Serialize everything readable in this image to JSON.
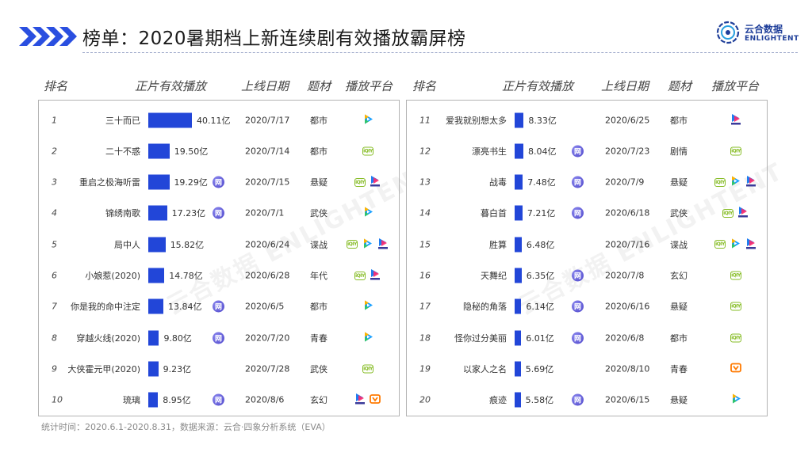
{
  "title": "榜单：2020暑期档上新连续剧有效播放霸屏榜",
  "logo": {
    "cn": "云合数据",
    "en": "ENLIGHTENT"
  },
  "headers": {
    "rank": "排名",
    "plays": "正片有效播放",
    "date": "上线日期",
    "genre": "题材",
    "platform": "播放平台"
  },
  "footnote": "统计时间：2020.6.1-2020.8.31，数据来源：云合·四象分析系统（EVA）",
  "watermark": {
    "cn": "云合数据",
    "en": "ENLIGHTENT"
  },
  "badge_char": "网",
  "bar_color": "#2246d8",
  "chart_data": {
    "type": "bar",
    "unit": "亿",
    "max_value": 40.11,
    "rows": [
      {
        "rank": "1",
        "name": "三十而已",
        "value": 40.11,
        "value_label": "40.11亿",
        "badge": false,
        "date": "2020/7/17",
        "genre": "都市",
        "platforms": [
          "tencent"
        ]
      },
      {
        "rank": "2",
        "name": "二十不惑",
        "value": 19.5,
        "value_label": "19.50亿",
        "badge": false,
        "date": "2020/7/14",
        "genre": "都市",
        "platforms": [
          "iqiyi"
        ]
      },
      {
        "rank": "3",
        "name": "重启之极海听雷",
        "value": 19.29,
        "value_label": "19.29亿",
        "badge": true,
        "date": "2020/7/15",
        "genre": "悬疑",
        "platforms": [
          "iqiyi",
          "youku"
        ]
      },
      {
        "rank": "4",
        "name": "锦绣南歌",
        "value": 17.23,
        "value_label": "17.23亿",
        "badge": true,
        "date": "2020/7/1",
        "genre": "武侠",
        "platforms": [
          "tencent"
        ]
      },
      {
        "rank": "5",
        "name": "局中人",
        "value": 15.82,
        "value_label": "15.82亿",
        "badge": false,
        "date": "2020/6/24",
        "genre": "谍战",
        "platforms": [
          "iqiyi",
          "tencent",
          "youku"
        ]
      },
      {
        "rank": "6",
        "name": "小娘惹(2020)",
        "value": 14.78,
        "value_label": "14.78亿",
        "badge": false,
        "date": "2020/6/28",
        "genre": "年代",
        "platforms": [
          "iqiyi",
          "youku"
        ]
      },
      {
        "rank": "7",
        "name": "你是我的命中注定",
        "value": 13.84,
        "value_label": "13.84亿",
        "badge": true,
        "date": "2020/6/5",
        "genre": "都市",
        "platforms": [
          "tencent"
        ]
      },
      {
        "rank": "8",
        "name": "穿越火线(2020)",
        "value": 9.8,
        "value_label": "9.80亿",
        "badge": true,
        "date": "2020/7/20",
        "genre": "青春",
        "platforms": [
          "tencent"
        ]
      },
      {
        "rank": "9",
        "name": "大侠霍元甲(2020)",
        "value": 9.23,
        "value_label": "9.23亿",
        "badge": false,
        "date": "2020/7/28",
        "genre": "武侠",
        "platforms": [
          "iqiyi"
        ]
      },
      {
        "rank": "10",
        "name": "琉璃",
        "value": 8.95,
        "value_label": "8.95亿",
        "badge": true,
        "date": "2020/8/6",
        "genre": "玄幻",
        "platforms": [
          "youku",
          "mango"
        ]
      },
      {
        "rank": "11",
        "name": "爱我就别想太多",
        "value": 8.33,
        "value_label": "8.33亿",
        "badge": false,
        "date": "2020/6/25",
        "genre": "都市",
        "platforms": [
          "youku"
        ]
      },
      {
        "rank": "12",
        "name": "漂亮书生",
        "value": 8.04,
        "value_label": "8.04亿",
        "badge": true,
        "date": "2020/7/23",
        "genre": "剧情",
        "platforms": [
          "iqiyi"
        ]
      },
      {
        "rank": "13",
        "name": "战毒",
        "value": 7.48,
        "value_label": "7.48亿",
        "badge": true,
        "date": "2020/7/9",
        "genre": "悬疑",
        "platforms": [
          "iqiyi",
          "tencent",
          "youku"
        ]
      },
      {
        "rank": "14",
        "name": "暮白首",
        "value": 7.21,
        "value_label": "7.21亿",
        "badge": true,
        "date": "2020/6/18",
        "genre": "武侠",
        "platforms": [
          "iqiyi",
          "youku"
        ]
      },
      {
        "rank": "15",
        "name": "胜算",
        "value": 6.48,
        "value_label": "6.48亿",
        "badge": false,
        "date": "2020/7/16",
        "genre": "谍战",
        "platforms": [
          "iqiyi",
          "tencent",
          "youku"
        ]
      },
      {
        "rank": "16",
        "name": "天舞纪",
        "value": 6.35,
        "value_label": "6.35亿",
        "badge": true,
        "date": "2020/7/8",
        "genre": "玄幻",
        "platforms": [
          "iqiyi"
        ]
      },
      {
        "rank": "17",
        "name": "隐秘的角落",
        "value": 6.14,
        "value_label": "6.14亿",
        "badge": true,
        "date": "2020/6/16",
        "genre": "悬疑",
        "platforms": [
          "iqiyi"
        ]
      },
      {
        "rank": "18",
        "name": "怪你过分美丽",
        "value": 6.01,
        "value_label": "6.01亿",
        "badge": true,
        "date": "2020/6/8",
        "genre": "都市",
        "platforms": [
          "iqiyi"
        ]
      },
      {
        "rank": "19",
        "name": "以家人之名",
        "value": 5.69,
        "value_label": "5.69亿",
        "badge": false,
        "date": "2020/8/10",
        "genre": "青春",
        "platforms": [
          "mango"
        ]
      },
      {
        "rank": "20",
        "name": "痕迹",
        "value": 5.58,
        "value_label": "5.58亿",
        "badge": true,
        "date": "2020/6/15",
        "genre": "悬疑",
        "platforms": [
          "tencent"
        ]
      }
    ]
  }
}
